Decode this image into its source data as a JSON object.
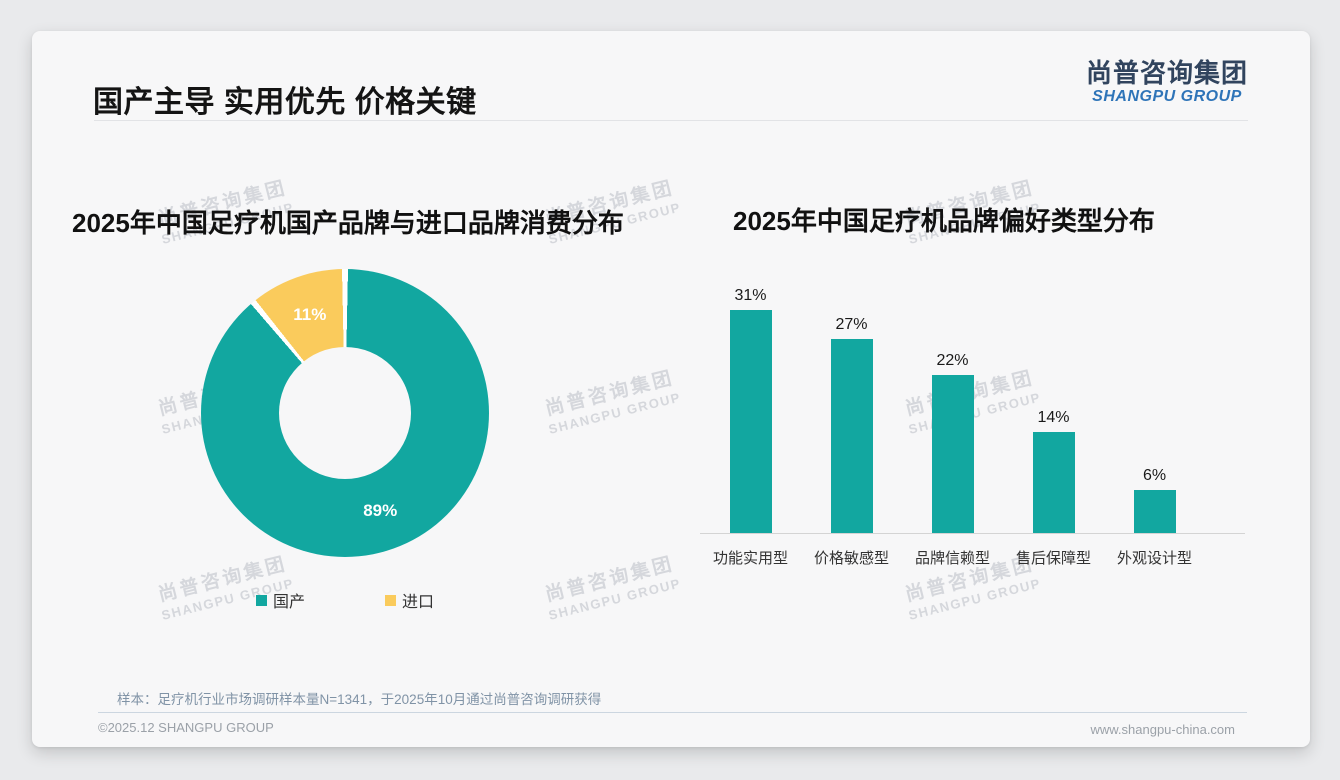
{
  "page": {
    "headline": "国产主导 实用优先 价格关键",
    "logo": {
      "cn": "尚普咨询集团",
      "en": "SHANGPU GROUP"
    },
    "watermark": {
      "cn": "尚普咨询集团",
      "en": "SHANGPU GROUP"
    },
    "note": "样本：足疗机行业市场调研样本量N=1341，于2025年10月通过尚普咨询调研获得",
    "footer": {
      "left": "©2025.12 SHANGPU GROUP",
      "right": "www.shangpu-china.com"
    }
  },
  "colors": {
    "teal": "#12a7a0",
    "yellow": "#facb5c",
    "card_bg": "#f7f7f8",
    "gap_white": "#ffffff"
  },
  "chart_data": [
    {
      "type": "pie",
      "donut": true,
      "title": "2025年中国足疗机国产品牌与进口品牌消费分布",
      "labels": [
        "国产",
        "进口"
      ],
      "values": [
        89,
        11
      ],
      "data_labels": [
        "89%",
        "11%"
      ],
      "colors": [
        "#12a7a0",
        "#facb5c"
      ],
      "legend_position": "bottom",
      "start_angle_deg": 0,
      "unit": "%"
    },
    {
      "type": "bar",
      "title": "2025年中国足疗机品牌偏好类型分布",
      "categories": [
        "功能实用型",
        "价格敏感型",
        "品牌信赖型",
        "售后保障型",
        "外观设计型"
      ],
      "values": [
        31,
        27,
        22,
        14,
        6
      ],
      "data_labels": [
        "31%",
        "27%",
        "22%",
        "14%",
        "6%"
      ],
      "bar_color": "#12a7a0",
      "xlabel": "",
      "ylabel": "",
      "ylim": [
        0,
        35
      ],
      "grid": false,
      "unit": "%"
    }
  ]
}
